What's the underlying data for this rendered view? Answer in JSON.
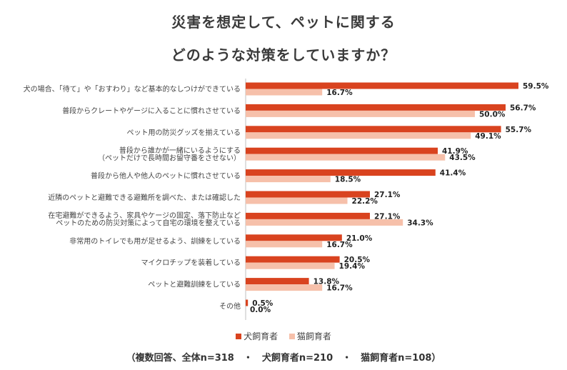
{
  "title_line1": "災害を想定して、ペットに関する",
  "title_line2": "どのような対策をしていますか？",
  "footer": "（複数回答、全体n=318　・　犬飼育者n=210　・　猫飼育者n=108）",
  "colors": {
    "dog": "#d9431f",
    "cat": "#f6c0aa",
    "axis": "#bfbfbf"
  },
  "chart_data": {
    "type": "bar",
    "orientation": "horizontal",
    "categories": [
      [
        "犬の場合、「待て」や「おすわり」など基本的なしつけができている"
      ],
      [
        "普段からクレートやゲージに入ることに慣れさせている"
      ],
      [
        "ペット用の防災グッズを揃えている"
      ],
      [
        "普段から誰かが一緒にいるようにする",
        "（ペットだけで長時間お留守番をさせない）"
      ],
      [
        "普段から他人や他人のペットに慣れさせている"
      ],
      [
        "近隣のペットと避難できる避難所を調べた、または確認した"
      ],
      [
        "在宅避難ができるよう、家具やケージの固定、落下防止など",
        "ペットのための防災対策によって自宅の環境を整えている"
      ],
      [
        "非常用のトイレでも用が足せるよう、訓練をしている"
      ],
      [
        "マイクロチップを装着している"
      ],
      [
        "ペットと避難訓練をしている"
      ],
      [
        "その他"
      ]
    ],
    "series": [
      {
        "name": "犬飼育者",
        "values": [
          59.5,
          56.7,
          55.7,
          41.9,
          41.4,
          27.1,
          27.1,
          21.0,
          20.5,
          13.8,
          0.5
        ]
      },
      {
        "name": "猫飼育者",
        "values": [
          16.7,
          50.0,
          49.1,
          43.5,
          18.5,
          22.2,
          34.3,
          16.7,
          19.4,
          16.7,
          0.0
        ]
      }
    ],
    "value_format": "percent_1dp",
    "legend": [
      "犬飼育者",
      "猫飼育者"
    ],
    "legend_position": "bottom"
  }
}
